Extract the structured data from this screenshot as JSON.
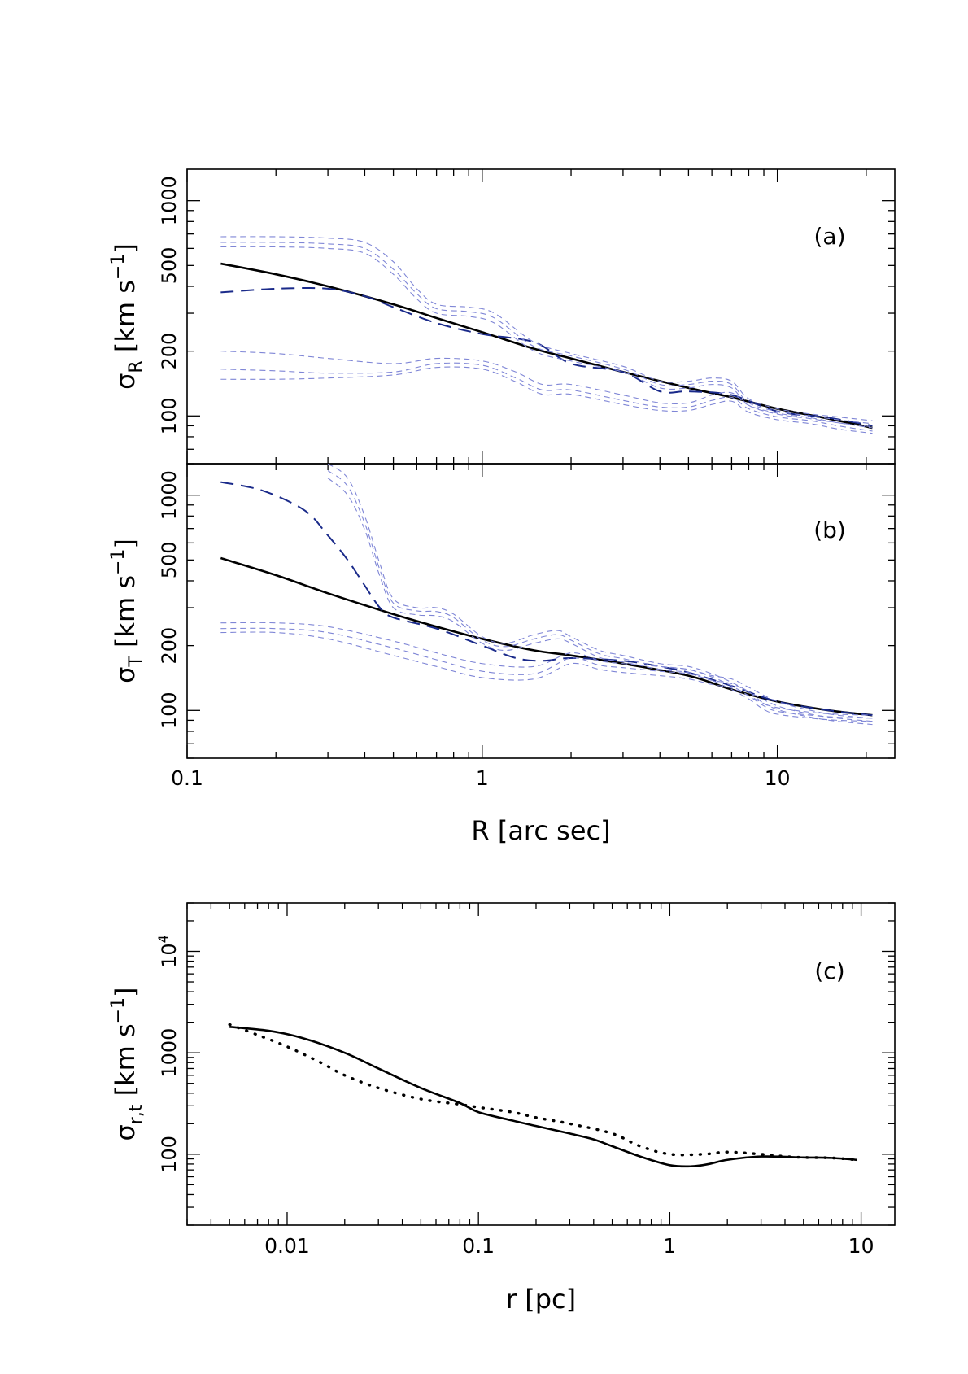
{
  "chart_data": [
    {
      "type": "line",
      "panel_label": "(a)",
      "xscale": "log",
      "yscale": "log",
      "xlim": [
        0.1,
        25
      ],
      "ylim": [
        60,
        1400
      ],
      "xlabel": "R [arc sec]",
      "ylabel": {
        "main": "σ",
        "sub": "R",
        "unit_pre": " [km s",
        "unit_sup": "−1",
        "unit_post": "]"
      },
      "yticks": [
        100,
        200,
        500,
        1000
      ],
      "ytick_labels": [
        "100",
        "200",
        "500",
        "1000"
      ],
      "series": [
        {
          "style": "solid-black",
          "x": [
            0.13,
            0.2,
            0.3,
            0.5,
            0.7,
            1,
            1.5,
            2,
            3,
            5,
            7,
            10,
            15,
            21
          ],
          "y": [
            510,
            455,
            400,
            330,
            285,
            245,
            205,
            185,
            160,
            135,
            122,
            108,
            97,
            88
          ]
        },
        {
          "style": "dashed-blue",
          "x": [
            0.13,
            0.2,
            0.3,
            0.4,
            0.5,
            0.7,
            1,
            1.5,
            2,
            3,
            4,
            5,
            7,
            10,
            15,
            21
          ],
          "y": [
            375,
            390,
            390,
            360,
            320,
            270,
            240,
            220,
            175,
            160,
            130,
            130,
            125,
            105,
            98,
            90
          ]
        },
        {
          "style": "thin-dashed",
          "x": [
            0.13,
            0.2,
            0.3,
            0.4,
            0.5,
            0.6,
            0.7,
            0.9,
            1.1,
            1.5,
            2,
            3,
            4,
            5,
            6,
            7,
            8,
            10,
            13,
            16,
            21
          ],
          "y": [
            680,
            680,
            670,
            640,
            520,
            390,
            330,
            320,
            300,
            220,
            195,
            170,
            145,
            145,
            150,
            145,
            120,
            108,
            102,
            99,
            95
          ]
        },
        {
          "style": "thin-dashed",
          "x": [
            0.13,
            0.2,
            0.3,
            0.4,
            0.5,
            0.6,
            0.7,
            0.9,
            1.1,
            1.5,
            2,
            3,
            4,
            5,
            6,
            7,
            8,
            10,
            13,
            16,
            21
          ],
          "y": [
            640,
            640,
            630,
            600,
            480,
            370,
            315,
            305,
            285,
            210,
            190,
            165,
            140,
            140,
            145,
            140,
            115,
            105,
            100,
            96,
            92
          ]
        },
        {
          "style": "thin-dashed",
          "x": [
            0.13,
            0.2,
            0.3,
            0.4,
            0.5,
            0.6,
            0.7,
            0.9,
            1.1,
            1.5,
            2,
            3,
            4,
            5,
            6,
            7,
            8,
            10,
            13,
            16,
            21
          ],
          "y": [
            610,
            610,
            600,
            570,
            455,
            350,
            300,
            290,
            270,
            200,
            180,
            160,
            135,
            135,
            140,
            135,
            112,
            102,
            97,
            93,
            89
          ]
        },
        {
          "style": "thin-dashed",
          "x": [
            0.13,
            0.2,
            0.3,
            0.5,
            0.7,
            1,
            1.3,
            1.6,
            2,
            3,
            4,
            5,
            6,
            7,
            8,
            10,
            13,
            16,
            21
          ],
          "y": [
            200,
            195,
            185,
            175,
            185,
            180,
            160,
            140,
            140,
            125,
            115,
            115,
            125,
            128,
            112,
            103,
            98,
            93,
            88
          ]
        },
        {
          "style": "thin-dashed",
          "x": [
            0.13,
            0.2,
            0.3,
            0.5,
            0.7,
            1,
            1.3,
            1.6,
            2,
            3,
            4,
            5,
            6,
            7,
            8,
            10,
            13,
            16,
            21
          ],
          "y": [
            165,
            162,
            158,
            160,
            175,
            172,
            150,
            132,
            132,
            118,
            110,
            110,
            118,
            122,
            108,
            99,
            95,
            90,
            85
          ]
        },
        {
          "style": "thin-dashed",
          "x": [
            0.13,
            0.2,
            0.3,
            0.5,
            0.7,
            1,
            1.3,
            1.6,
            2,
            3,
            4,
            5,
            6,
            7,
            8,
            10,
            13,
            16,
            21
          ],
          "y": [
            148,
            148,
            150,
            155,
            168,
            165,
            144,
            126,
            126,
            113,
            106,
            106,
            113,
            117,
            104,
            96,
            92,
            87,
            83
          ]
        }
      ]
    },
    {
      "type": "line",
      "panel_label": "(b)",
      "xscale": "log",
      "yscale": "log",
      "xlim": [
        0.1,
        25
      ],
      "ylim": [
        60,
        1400
      ],
      "xlabel": "R [arc sec]",
      "xticks": [
        0.1,
        1,
        10
      ],
      "xtick_labels": [
        "0.1",
        "1",
        "10"
      ],
      "ylabel": {
        "main": "σ",
        "sub": "T",
        "unit_pre": " [km s",
        "unit_sup": "−1",
        "unit_post": "]"
      },
      "yticks": [
        100,
        200,
        500,
        1000
      ],
      "ytick_labels": [
        "100",
        "200",
        "500",
        "1000"
      ],
      "series": [
        {
          "style": "solid-black",
          "x": [
            0.13,
            0.2,
            0.3,
            0.5,
            0.7,
            1,
            1.5,
            2,
            3,
            5,
            7,
            10,
            15,
            21
          ],
          "y": [
            510,
            425,
            350,
            280,
            245,
            215,
            190,
            180,
            165,
            145,
            125,
            110,
            100,
            95
          ]
        },
        {
          "style": "dashed-blue",
          "x": [
            0.13,
            0.18,
            0.25,
            0.3,
            0.35,
            0.4,
            0.45,
            0.5,
            0.7,
            1,
            1.3,
            1.6,
            2,
            3,
            4,
            5,
            7,
            10,
            15,
            21
          ],
          "y": [
            1150,
            1050,
            850,
            650,
            500,
            380,
            300,
            270,
            240,
            200,
            175,
            170,
            175,
            170,
            160,
            150,
            130,
            110,
            100,
            95
          ]
        },
        {
          "style": "thin-dashed",
          "x": [
            0.3,
            0.35,
            0.4,
            0.45,
            0.5,
            0.6,
            0.7,
            0.8,
            1,
            1.2,
            1.5,
            1.8,
            2,
            2.5,
            3,
            4,
            5,
            6,
            7,
            8,
            9,
            10,
            13,
            16,
            21
          ],
          "y": [
            1400,
            1200,
            800,
            480,
            330,
            300,
            300,
            280,
            220,
            205,
            225,
            235,
            220,
            190,
            180,
            165,
            160,
            148,
            135,
            122,
            108,
            103,
            98,
            96,
            95
          ]
        },
        {
          "style": "thin-dashed",
          "x": [
            0.3,
            0.35,
            0.4,
            0.45,
            0.5,
            0.6,
            0.7,
            0.8,
            1,
            1.2,
            1.5,
            1.8,
            2,
            2.5,
            3,
            4,
            5,
            6,
            7,
            8,
            9,
            10,
            13,
            16,
            21
          ],
          "y": [
            1300,
            1100,
            740,
            450,
            315,
            290,
            288,
            270,
            212,
            198,
            215,
            225,
            212,
            183,
            174,
            160,
            155,
            143,
            130,
            117,
            105,
            99,
            95,
            93,
            92
          ]
        },
        {
          "style": "thin-dashed",
          "x": [
            0.3,
            0.35,
            0.4,
            0.45,
            0.5,
            0.6,
            0.7,
            0.8,
            1,
            1.2,
            1.5,
            1.8,
            2,
            2.5,
            3,
            4,
            5,
            6,
            7,
            8,
            9,
            10,
            13,
            16,
            21
          ],
          "y": [
            1200,
            1000,
            690,
            420,
            300,
            278,
            275,
            258,
            205,
            190,
            205,
            215,
            205,
            176,
            168,
            155,
            150,
            138,
            125,
            113,
            101,
            96,
            92,
            90,
            89
          ]
        },
        {
          "style": "thin-dashed",
          "x": [
            0.13,
            0.2,
            0.3,
            0.5,
            0.7,
            1,
            1.5,
            2,
            2.5,
            3,
            4,
            5,
            6,
            7,
            8,
            10,
            13,
            16,
            21
          ],
          "y": [
            255,
            255,
            245,
            210,
            185,
            165,
            160,
            185,
            170,
            165,
            160,
            155,
            145,
            140,
            128,
            110,
            100,
            95,
            92
          ]
        },
        {
          "style": "thin-dashed",
          "x": [
            0.13,
            0.2,
            0.3,
            0.5,
            0.7,
            1,
            1.5,
            2,
            2.5,
            3,
            4,
            5,
            6,
            7,
            8,
            10,
            13,
            16,
            21
          ],
          "y": [
            240,
            240,
            230,
            195,
            172,
            152,
            148,
            175,
            162,
            158,
            152,
            148,
            138,
            133,
            122,
            105,
            96,
            92,
            89
          ]
        },
        {
          "style": "thin-dashed",
          "x": [
            0.13,
            0.2,
            0.3,
            0.5,
            0.7,
            1,
            1.5,
            2,
            2.5,
            3,
            4,
            5,
            6,
            7,
            8,
            10,
            13,
            16,
            21
          ],
          "y": [
            230,
            230,
            215,
            180,
            160,
            142,
            140,
            165,
            155,
            150,
            145,
            140,
            132,
            127,
            117,
            101,
            93,
            89,
            86
          ]
        }
      ]
    },
    {
      "type": "line",
      "panel_label": "(c)",
      "xscale": "log",
      "yscale": "log",
      "xlim": [
        0.003,
        15
      ],
      "ylim": [
        20,
        30000
      ],
      "xlabel": "r [pc]",
      "xticks": [
        0.01,
        0.1,
        1,
        10
      ],
      "xtick_labels": [
        "0.01",
        "0.1",
        "1",
        "10"
      ],
      "ylabel": {
        "main": "σ",
        "sub": "r,t",
        "unit_pre": " [km s",
        "unit_sup": "−1",
        "unit_post": "]"
      },
      "yticks": [
        100,
        1000,
        10000
      ],
      "ytick_labels": [
        {
          "base": "100"
        },
        {
          "base": "1000"
        },
        {
          "base": "10",
          "sup": "4"
        }
      ],
      "series": [
        {
          "style": "solid-black",
          "x": [
            0.005,
            0.008,
            0.012,
            0.02,
            0.03,
            0.05,
            0.08,
            0.1,
            0.15,
            0.2,
            0.3,
            0.4,
            0.5,
            0.7,
            1,
            1.3,
            1.6,
            2,
            3,
            5,
            7,
            9.5
          ],
          "y": [
            1800,
            1650,
            1400,
            1000,
            700,
            450,
            320,
            260,
            215,
            190,
            160,
            140,
            120,
            95,
            78,
            76,
            80,
            88,
            95,
            93,
            92,
            88
          ]
        },
        {
          "style": "dotted-black",
          "x": [
            0.005,
            0.007,
            0.01,
            0.015,
            0.02,
            0.03,
            0.05,
            0.08,
            0.1,
            0.15,
            0.2,
            0.3,
            0.5,
            0.7,
            1,
            1.5,
            2,
            3,
            4,
            5,
            7,
            9.5
          ],
          "y": [
            1900,
            1500,
            1150,
            800,
            600,
            450,
            350,
            310,
            290,
            260,
            230,
            200,
            160,
            120,
            100,
            100,
            105,
            100,
            95,
            93,
            92,
            88
          ]
        }
      ]
    }
  ]
}
